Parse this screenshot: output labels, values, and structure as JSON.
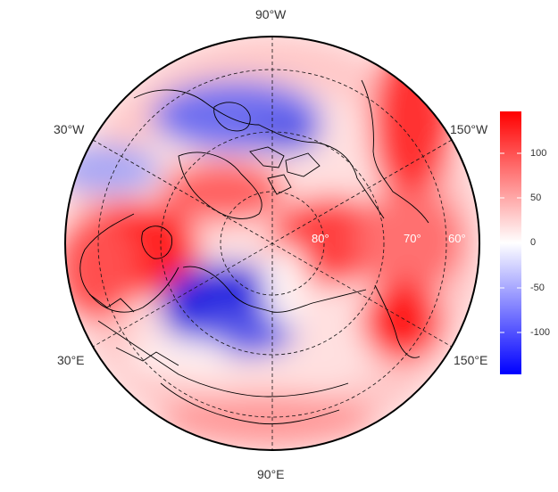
{
  "map": {
    "projection": "north polar stereographic",
    "longitude_labels": {
      "top": "90°W",
      "upper_left": "30°W",
      "upper_right": "150°W",
      "lower_left": "30°E",
      "lower_right": "150°E",
      "bottom": "90°E"
    },
    "latitude_labels": [
      "80°",
      "70°",
      "60°"
    ],
    "graticule": {
      "parallels_deg": [
        80,
        70,
        60,
        50
      ],
      "meridian_step_deg": 60
    },
    "outline_color": "#000000"
  },
  "colorbar": {
    "colormap": "blue-white-red",
    "min_color": "#0000ff",
    "mid_color": "#ffffff",
    "max_color": "#ff0000",
    "range": [
      -145,
      145
    ],
    "ticks": [
      "100",
      "50",
      "0",
      "-50",
      "-100"
    ],
    "tick_values": [
      100,
      50,
      0,
      -50,
      -100
    ]
  }
}
